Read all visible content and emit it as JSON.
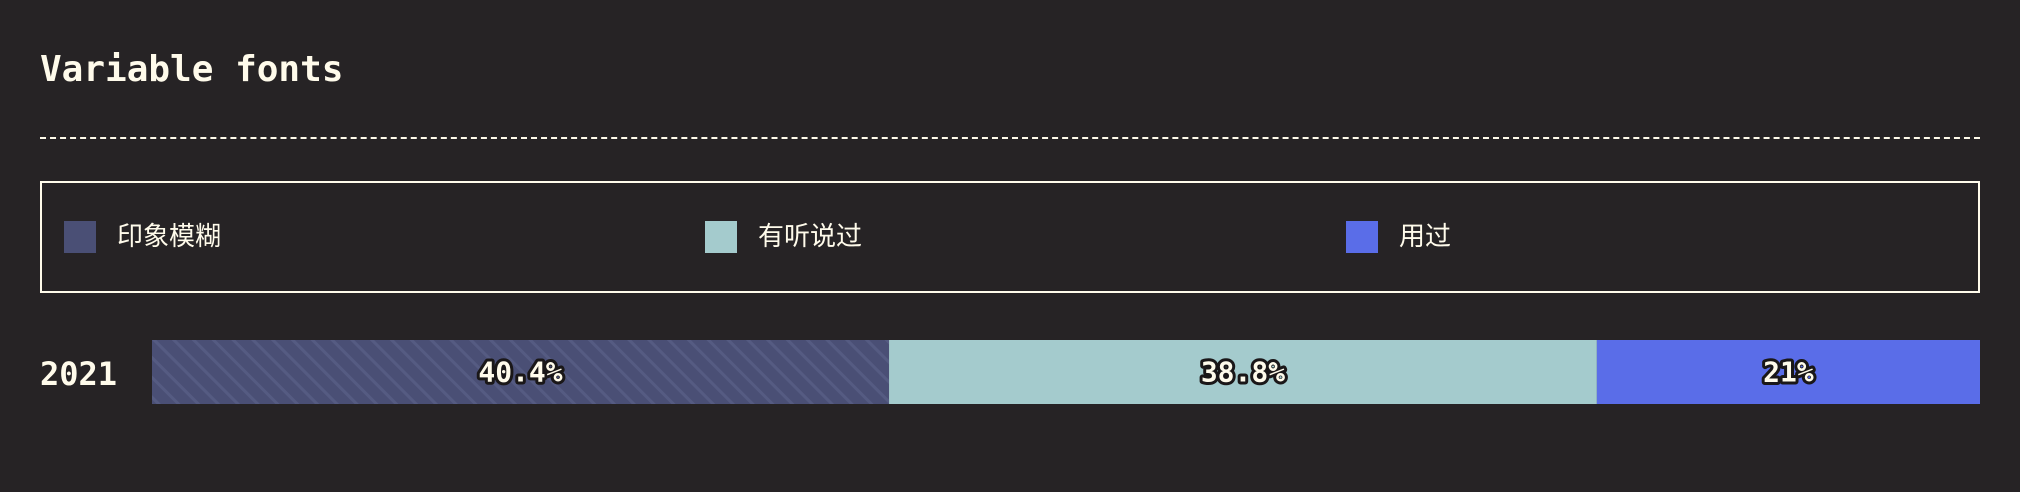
{
  "chart_data": {
    "type": "bar",
    "orientation": "horizontal",
    "stacked": true,
    "title": "Variable fonts",
    "categories": [
      "2021"
    ],
    "series": [
      {
        "name": "印象模糊",
        "values": [
          40.4
        ],
        "label": "40.4%",
        "color": "#4a4f75",
        "pattern": "diagonal-stripes"
      },
      {
        "name": "有听说过",
        "values": [
          38.8
        ],
        "label": "38.8%",
        "color": "#a4cbcd"
      },
      {
        "name": "用过",
        "values": [
          21
        ],
        "label": "21%",
        "color": "#5a6de8"
      }
    ],
    "legend_position": "top",
    "xlim": [
      0,
      100
    ],
    "grid": false
  },
  "colors": {
    "background": "#262325",
    "text": "#fffbeb"
  }
}
